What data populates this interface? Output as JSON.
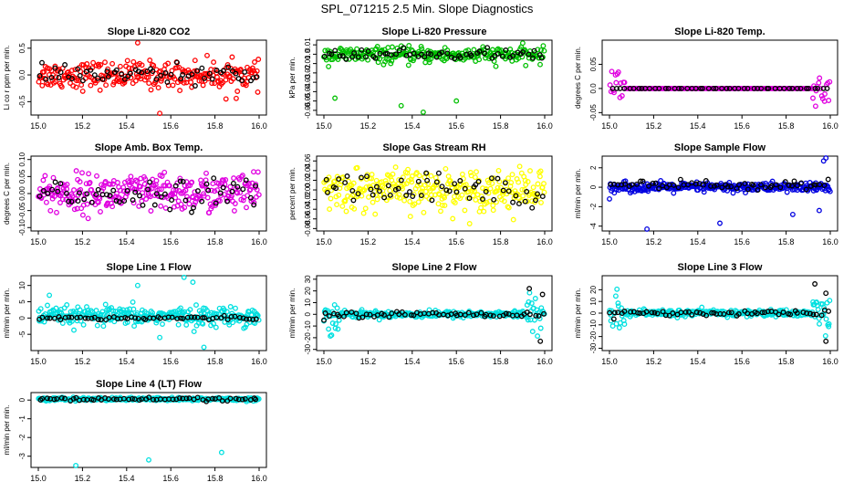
{
  "page": {
    "title": "SPL_071215  2.5 Min. Slope Diagnostics"
  },
  "chart_data": [
    {
      "type": "scatter",
      "title": "Slope Li-820 CO2",
      "ylabel": "Li co r ppm per min.",
      "xlim": [
        15.0,
        16.0
      ],
      "ylim": [
        -0.75,
        0.65
      ],
      "xticks": [
        "15.0",
        "15.2",
        "15.4",
        "15.6",
        "15.8",
        "16.0"
      ],
      "yticks": [
        -0.5,
        0.0,
        0.5
      ],
      "ytick_labels": [
        "-0.5",
        "0.0",
        "0.5"
      ],
      "series": [
        {
          "name": "all",
          "color": "#ff0000",
          "count": 260,
          "spread": 0.18,
          "center": 0.0,
          "outliers": [
            [
              15.45,
              0.6
            ],
            [
              15.55,
              -0.72
            ],
            [
              15.85,
              -0.45
            ]
          ]
        },
        {
          "name": "2.5 min",
          "color": "#000000",
          "count": 60,
          "spread": 0.12,
          "center": 0.0
        }
      ]
    },
    {
      "type": "scatter",
      "title": "Slope Li-820 Pressure",
      "ylabel": "kPa per min.",
      "xlim": [
        15.0,
        16.0
      ],
      "ylim": [
        -0.065,
        0.015
      ],
      "xticks": [
        "15.0",
        "15.2",
        "15.4",
        "15.6",
        "15.8",
        "16.0"
      ],
      "yticks": [
        0.01,
        0.0,
        -0.01,
        -0.02,
        -0.03,
        -0.04,
        -0.05,
        -0.06
      ],
      "ytick_labels": [
        "0.01",
        "0.0",
        "-0.01",
        "-0.02",
        "-0.03",
        "-0.04",
        "-0.05",
        "-0.06"
      ],
      "series": [
        {
          "name": "all",
          "color": "#00c000",
          "count": 260,
          "spread": 0.006,
          "center": -0.001,
          "outliers": [
            [
              15.05,
              -0.047
            ],
            [
              15.35,
              -0.055
            ],
            [
              15.6,
              -0.05
            ],
            [
              15.45,
              -0.062
            ]
          ]
        },
        {
          "name": "2.5 min",
          "color": "#000000",
          "count": 60,
          "spread": 0.004,
          "center": 0.0
        }
      ]
    },
    {
      "type": "scatter",
      "title": "Slope Li-820 Temp.",
      "ylabel": "degrees C per min.",
      "xlim": [
        15.0,
        16.0
      ],
      "ylim": [
        -0.055,
        0.1
      ],
      "xticks": [
        "15.0",
        "15.2",
        "15.4",
        "15.6",
        "15.8",
        "16.0"
      ],
      "yticks": [
        0.05,
        0.0,
        -0.05
      ],
      "ytick_labels": [
        "0.05",
        "0.0",
        "-0.05"
      ],
      "series": [
        {
          "name": "all",
          "color": "#e000e0",
          "count": 200,
          "spread": 0.0,
          "center": 0.0,
          "edge_spread": 0.03
        },
        {
          "name": "2.5 min",
          "color": "#000000",
          "count": 50,
          "spread": 0.0,
          "center": 0.0
        }
      ]
    },
    {
      "type": "scatter",
      "title": "Slope Amb. Box Temp.",
      "ylabel": "degrees C per min.",
      "xlim": [
        15.0,
        16.0
      ],
      "ylim": [
        -0.11,
        0.11
      ],
      "xticks": [
        "15.0",
        "15.2",
        "15.4",
        "15.6",
        "15.8",
        "16.0"
      ],
      "yticks": [
        0.1,
        0.05,
        0.0,
        -0.05,
        -0.1
      ],
      "ytick_labels": [
        "0.10",
        "0.05",
        "0.00",
        "-0.05",
        "-0.10"
      ],
      "series": [
        {
          "name": "all",
          "color": "#e000e0",
          "count": 300,
          "spread": 0.04,
          "center": 0.0
        },
        {
          "name": "2.5 min",
          "color": "#000000",
          "count": 60,
          "spread": 0.03,
          "center": 0.0
        }
      ]
    },
    {
      "type": "scatter",
      "title": "Slope Gas Stream RH",
      "ylabel": "percent per min.",
      "xlim": [
        15.0,
        16.0
      ],
      "ylim": [
        -0.085,
        0.07
      ],
      "xticks": [
        "15.0",
        "15.2",
        "15.4",
        "15.6",
        "15.8",
        "16.0"
      ],
      "yticks": [
        0.06,
        0.04,
        0.02,
        0.0,
        -0.02,
        -0.04,
        -0.06,
        -0.08
      ],
      "ytick_labels": [
        "0.06",
        "0.04",
        "0.02",
        "0.00",
        "-0.02",
        "-0.04",
        "-0.06",
        "-0.08"
      ],
      "series": [
        {
          "name": "all",
          "color": "#ffff00",
          "count": 300,
          "spread": 0.03,
          "center": 0.0
        },
        {
          "name": "2.5 min",
          "color": "#000000",
          "count": 60,
          "spread": 0.025,
          "center": 0.0
        }
      ]
    },
    {
      "type": "scatter",
      "title": "Slope Sample Flow",
      "ylabel": "ml/min per min.",
      "xlim": [
        15.0,
        16.0
      ],
      "ylim": [
        -4.5,
        3.2
      ],
      "xticks": [
        "15.0",
        "15.2",
        "15.4",
        "15.6",
        "15.8",
        "16.0"
      ],
      "yticks": [
        2,
        0,
        -2,
        -4
      ],
      "ytick_labels": [
        "2",
        "0",
        "-2",
        "-4"
      ],
      "series": [
        {
          "name": "all",
          "color": "#0000e0",
          "count": 300,
          "spread": 0.35,
          "center": 0.0,
          "outliers": [
            [
              15.17,
              -4.3
            ],
            [
              15.5,
              -3.7
            ],
            [
              15.83,
              -2.8
            ],
            [
              15.95,
              -2.4
            ],
            [
              15.97,
              2.7
            ],
            [
              15.98,
              3.0
            ],
            [
              15.0,
              -1.2
            ]
          ]
        },
        {
          "name": "2.5 min",
          "color": "#000000",
          "count": 60,
          "spread": 0.4,
          "center": 0.2
        }
      ]
    },
    {
      "type": "scatter",
      "title": "Slope Line 1 Flow",
      "ylabel": "ml/min per min.",
      "xlim": [
        15.0,
        16.0
      ],
      "ylim": [
        -10,
        13
      ],
      "xticks": [
        "15.0",
        "15.2",
        "15.4",
        "15.6",
        "15.8",
        "16.0"
      ],
      "yticks": [
        10,
        5,
        0,
        -5
      ],
      "ytick_labels": [
        "10",
        "5",
        "0",
        "-5"
      ],
      "series": [
        {
          "name": "all",
          "color": "#00e0e0",
          "count": 300,
          "spread": 2.0,
          "center": 0.5,
          "outliers": [
            [
              15.05,
              7
            ],
            [
              15.45,
              10
            ],
            [
              15.66,
              12.5
            ],
            [
              15.7,
              11
            ],
            [
              15.75,
              -9
            ],
            [
              15.55,
              -6
            ]
          ]
        },
        {
          "name": "2.5 min",
          "color": "#000000",
          "count": 60,
          "spread": 0.4,
          "center": 0.0
        }
      ]
    },
    {
      "type": "scatter",
      "title": "Slope Line 2 Flow",
      "ylabel": "ml/min per min.",
      "xlim": [
        15.0,
        16.0
      ],
      "ylim": [
        -31,
        33
      ],
      "xticks": [
        "15.0",
        "15.2",
        "15.4",
        "15.6",
        "15.8",
        "16.0"
      ],
      "yticks": [
        30,
        20,
        10,
        0,
        -10,
        -20,
        -30
      ],
      "ytick_labels": [
        "30",
        "20",
        "10",
        "0",
        "-10",
        "-20",
        "-30"
      ],
      "series": [
        {
          "name": "all",
          "color": "#00e0e0",
          "count": 300,
          "spread": 2.0,
          "center": 0.0,
          "edge_spread": 10
        },
        {
          "name": "2.5 min",
          "color": "#000000",
          "count": 60,
          "spread": 1.5,
          "center": 0.0,
          "outliers": [
            [
              15.93,
              22
            ],
            [
              15.99,
              17
            ],
            [
              15.98,
              -23
            ],
            [
              15.0,
              -5
            ]
          ]
        }
      ]
    },
    {
      "type": "scatter",
      "title": "Slope Line 3 Flow",
      "ylabel": "ml/min per min.",
      "xlim": [
        15.0,
        16.0
      ],
      "ylim": [
        -32,
        32
      ],
      "xticks": [
        "15.0",
        "15.2",
        "15.4",
        "15.6",
        "15.8",
        "16.0"
      ],
      "yticks": [
        20,
        10,
        0,
        -10,
        -20,
        -30
      ],
      "ytick_labels": [
        "20",
        "10",
        "0",
        "-10",
        "-20",
        "-30"
      ],
      "series": [
        {
          "name": "all",
          "color": "#00e0e0",
          "count": 300,
          "spread": 2.0,
          "center": 0.0,
          "edge_spread": 12
        },
        {
          "name": "2.5 min",
          "color": "#000000",
          "count": 60,
          "spread": 1.5,
          "center": 0.0,
          "outliers": [
            [
              15.93,
              25
            ],
            [
              15.98,
              17
            ],
            [
              15.98,
              -24
            ],
            [
              15.02,
              -5
            ]
          ]
        }
      ]
    },
    {
      "type": "scatter",
      "title": "Slope Line 4 (LT) Flow",
      "ylabel": "ml/min per min.",
      "xlim": [
        15.0,
        16.0
      ],
      "ylim": [
        -3.6,
        0.4
      ],
      "xticks": [
        "15.0",
        "15.2",
        "15.4",
        "15.6",
        "15.8",
        "16.0"
      ],
      "yticks": [
        0,
        -1,
        -2,
        -3
      ],
      "ytick_labels": [
        "0",
        "-1",
        "-2",
        "-3"
      ],
      "series": [
        {
          "name": "all",
          "color": "#00e0e0",
          "count": 300,
          "spread": 0.06,
          "center": 0.05,
          "outliers": [
            [
              15.17,
              -3.5
            ],
            [
              15.5,
              -3.2
            ],
            [
              15.83,
              -2.8
            ]
          ]
        },
        {
          "name": "2.5 min",
          "color": "#000000",
          "count": 60,
          "spread": 0.06,
          "center": 0.05
        }
      ]
    }
  ]
}
